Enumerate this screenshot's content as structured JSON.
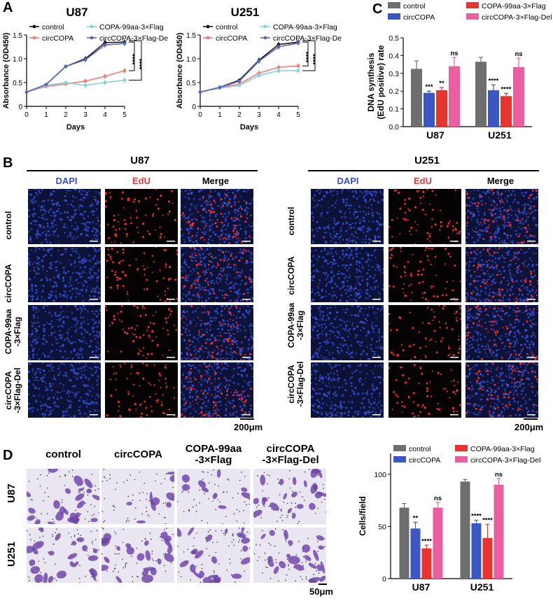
{
  "panels": {
    "A": "A",
    "B": "B",
    "C": "C",
    "D": "D"
  },
  "colors": {
    "control": "#111111",
    "circ": "#f07b78",
    "copa": "#84d3da",
    "del": "#5a69b4",
    "bar_control": "#6e6e6e",
    "bar_circ": "#3b57c4",
    "bar_copa": "#e8342f",
    "bar_del": "#ea5fa0"
  },
  "chart_data": [
    {
      "type": "line",
      "title": "U87",
      "xlabel": "Days",
      "ylabel": "Absorbance (OD450)",
      "x": [
        0,
        1,
        2,
        3,
        4,
        5
      ],
      "xlim": [
        0,
        5
      ],
      "ylim": [
        0,
        1.5
      ],
      "yticks": [
        "0",
        "0.5",
        "1.0",
        "1.5"
      ],
      "legend": [
        "control",
        "COPA-99aa-3×Flag",
        "circCOPA",
        "circCOPA-3×Flag-Del"
      ],
      "series": [
        {
          "name": "control",
          "values": [
            0.3,
            0.46,
            0.84,
            1.0,
            1.34,
            1.35
          ]
        },
        {
          "name": "circCOPA",
          "values": [
            0.3,
            0.42,
            0.47,
            0.53,
            0.63,
            0.75
          ]
        },
        {
          "name": "COPA-99aa-3×Flag",
          "values": [
            0.3,
            0.44,
            0.5,
            0.44,
            0.5,
            0.55
          ]
        },
        {
          "name": "circCOPA-3×Flag-Del",
          "values": [
            0.3,
            0.46,
            0.84,
            0.98,
            1.29,
            1.32
          ]
        }
      ],
      "annotations": [
        "****",
        "****"
      ]
    },
    {
      "type": "line",
      "title": "U251",
      "xlabel": "Days",
      "ylabel": "Absorbance (OD450)",
      "x": [
        0,
        1,
        2,
        3,
        4,
        5
      ],
      "xlim": [
        0,
        5
      ],
      "ylim": [
        0,
        1.5
      ],
      "yticks": [
        "0",
        "0.5",
        "1.0",
        "1.5"
      ],
      "legend": [
        "control",
        "COPA-99aa-3×Flag",
        "circCOPA",
        "circCOPA-3×Flag-Del"
      ],
      "series": [
        {
          "name": "control",
          "values": [
            0.3,
            0.4,
            0.55,
            0.97,
            1.3,
            1.35
          ]
        },
        {
          "name": "circCOPA",
          "values": [
            0.3,
            0.4,
            0.47,
            0.7,
            0.82,
            0.85
          ]
        },
        {
          "name": "COPA-99aa-3×Flag",
          "values": [
            0.3,
            0.38,
            0.44,
            0.65,
            0.75,
            0.75
          ]
        },
        {
          "name": "circCOPA-3×Flag-Del",
          "values": [
            0.3,
            0.4,
            0.53,
            0.95,
            1.25,
            1.33
          ]
        }
      ],
      "annotations": [
        "****",
        "****"
      ]
    },
    {
      "type": "bar",
      "ylabel": "DNA synthesis\n(EdU positive) rate",
      "ylabel_lines": [
        "DNA synthesis",
        "(EdU positive) rate"
      ],
      "categories": [
        "U87",
        "U251"
      ],
      "ylim": [
        0,
        0.5
      ],
      "yticks": [
        "0.0",
        "0.1",
        "0.2",
        "0.3",
        "0.4",
        "0.5"
      ],
      "legend": [
        "control",
        "COPA-99aa-3×Flag",
        "circCOPA",
        "circCOPA-3×Flag-Del"
      ],
      "series": [
        {
          "name": "control",
          "values": [
            0.325,
            0.365
          ],
          "errors": [
            0.045,
            0.025
          ],
          "labels": [
            "",
            ""
          ]
        },
        {
          "name": "circCOPA",
          "values": [
            0.19,
            0.205
          ],
          "errors": [
            0.01,
            0.03
          ],
          "labels": [
            "***",
            "****"
          ]
        },
        {
          "name": "COPA-99aa-3×Flag",
          "values": [
            0.205,
            0.172
          ],
          "errors": [
            0.015,
            0.015
          ],
          "labels": [
            "**",
            "****"
          ]
        },
        {
          "name": "circCOPA-3×Flag-Del",
          "values": [
            0.34,
            0.335
          ],
          "errors": [
            0.05,
            0.05
          ],
          "labels": [
            "ns",
            "ns"
          ]
        }
      ]
    },
    {
      "type": "bar",
      "ylabel": "Cells/field",
      "categories": [
        "U87",
        "U251"
      ],
      "ylim": [
        0,
        120
      ],
      "yticks": [
        "0",
        "50",
        "100"
      ],
      "legend": [
        "control",
        "COPA-99aa-3×Flag",
        "circCOPA",
        "circCOPA-3×Flag-Del"
      ],
      "series": [
        {
          "name": "control",
          "values": [
            68,
            93
          ],
          "errors": [
            4,
            2
          ],
          "labels": [
            "",
            ""
          ]
        },
        {
          "name": "circCOPA",
          "values": [
            48,
            53
          ],
          "errors": [
            6,
            3
          ],
          "labels": [
            "**",
            "****"
          ]
        },
        {
          "name": "COPA-99aa-3×Flag",
          "values": [
            29,
            39
          ],
          "errors": [
            3,
            13
          ],
          "labels": [
            "****",
            "****"
          ]
        },
        {
          "name": "circCOPA-3×Flag-Del",
          "values": [
            68,
            90
          ],
          "errors": [
            5,
            6
          ],
          "labels": [
            "ns",
            "ns"
          ]
        }
      ]
    }
  ],
  "panelB": {
    "left_title": "U87",
    "right_title": "U251",
    "columns": [
      "DAPI",
      "EdU",
      "Merge"
    ],
    "rows": [
      "control",
      "circCOPA",
      "COPA-99aa\n-3×Flag",
      "circCOPA\n-3×Flag-Del"
    ],
    "scale": "200μm"
  },
  "panelD": {
    "columns": [
      "control",
      "circCOPA",
      "COPA-99aa\n-3×Flag",
      "circCOPA\n-3×Flag-Del"
    ],
    "rows": [
      "U87",
      "U251"
    ],
    "scale": "50μm"
  }
}
